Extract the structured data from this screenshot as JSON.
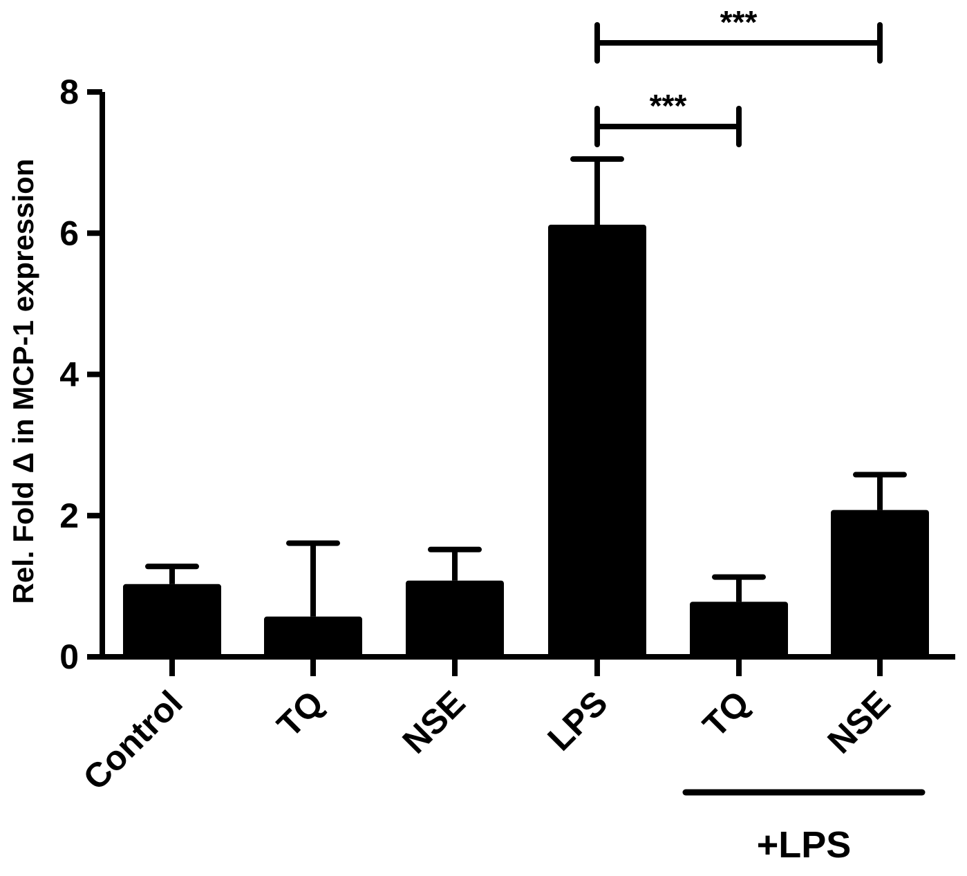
{
  "chart_data": {
    "type": "bar",
    "title": "",
    "xlabel": "",
    "ylabel": "Rel. Fold Δ in MCP-1 expression",
    "ylim": [
      0,
      8
    ],
    "yticks": [
      "0",
      "2",
      "4",
      "6",
      "8"
    ],
    "grid": false,
    "legend": "none",
    "bar_color": "#000000",
    "categories": [
      "Control",
      "TQ",
      "NSE",
      "LPS",
      "TQ",
      "NSE"
    ],
    "values": [
      1.03,
      0.57,
      1.08,
      6.12,
      0.78,
      2.08
    ],
    "error_upper": [
      0.25,
      1.04,
      0.44,
      0.93,
      0.35,
      0.5
    ],
    "group_bracket": {
      "label": "+LPS",
      "categories_index": [
        4,
        5
      ]
    },
    "significance": [
      {
        "from_index": 3,
        "to_index": 4,
        "label": "***"
      },
      {
        "from_index": 3,
        "to_index": 5,
        "label": "***"
      }
    ]
  }
}
